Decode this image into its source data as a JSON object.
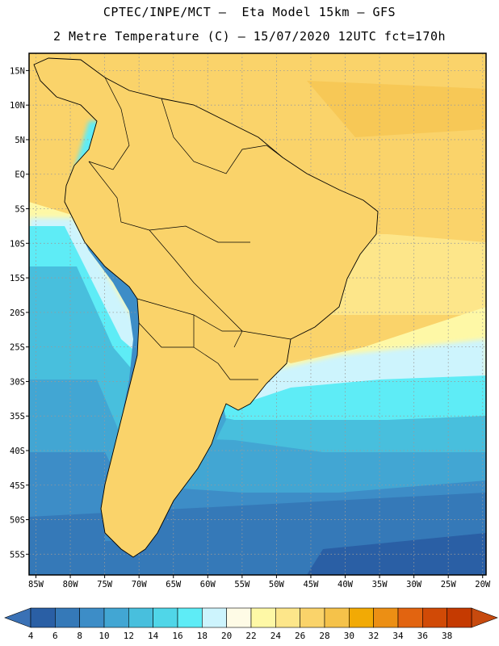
{
  "title": {
    "line1": "CPTEC/INPE/MCT –  Eta Model 15km – GFS",
    "line2": "2 Metre Temperature (C) – 15/07/2020 12UTC fct=170h"
  },
  "axes": {
    "lat_labels": [
      "15N",
      "10N",
      "5N",
      "EQ",
      "5S",
      "10S",
      "15S",
      "20S",
      "25S",
      "30S",
      "35S",
      "40S",
      "45S",
      "50S",
      "55S"
    ],
    "lat_values": [
      15,
      10,
      5,
      0,
      -5,
      -10,
      -15,
      -20,
      -25,
      -30,
      -35,
      -40,
      -45,
      -50,
      -55
    ],
    "lon_labels": [
      "85W",
      "80W",
      "75W",
      "70W",
      "65W",
      "60W",
      "55W",
      "50W",
      "45W",
      "40W",
      "35W",
      "30W",
      "25W",
      "20W"
    ],
    "lon_values": [
      -85,
      -80,
      -75,
      -70,
      -65,
      -60,
      -55,
      -50,
      -45,
      -40,
      -35,
      -30,
      -25,
      -20
    ],
    "lat_range": [
      -58,
      17.5
    ],
    "lon_range": [
      -86,
      -19.5
    ],
    "grid": "dotted"
  },
  "colorbar": {
    "labels": [
      "4",
      "6",
      "8",
      "10",
      "12",
      "14",
      "16",
      "18",
      "20",
      "22",
      "24",
      "26",
      "28",
      "30",
      "32",
      "34",
      "36",
      "38"
    ],
    "colors": [
      "#2a5fa5",
      "#3579b8",
      "#3d8dc7",
      "#42a6d3",
      "#48bfdd",
      "#50d6e8",
      "#5eecf6",
      "#cdf4fd",
      "#fefbe6",
      "#fef8a6",
      "#fde68a",
      "#fad36a",
      "#f5c24a",
      "#f2aa05",
      "#ec8f14",
      "#e26410",
      "#d14a06",
      "#c53a01"
    ],
    "low_color": "#3a71b5",
    "high_color": "#c74a0e"
  }
}
